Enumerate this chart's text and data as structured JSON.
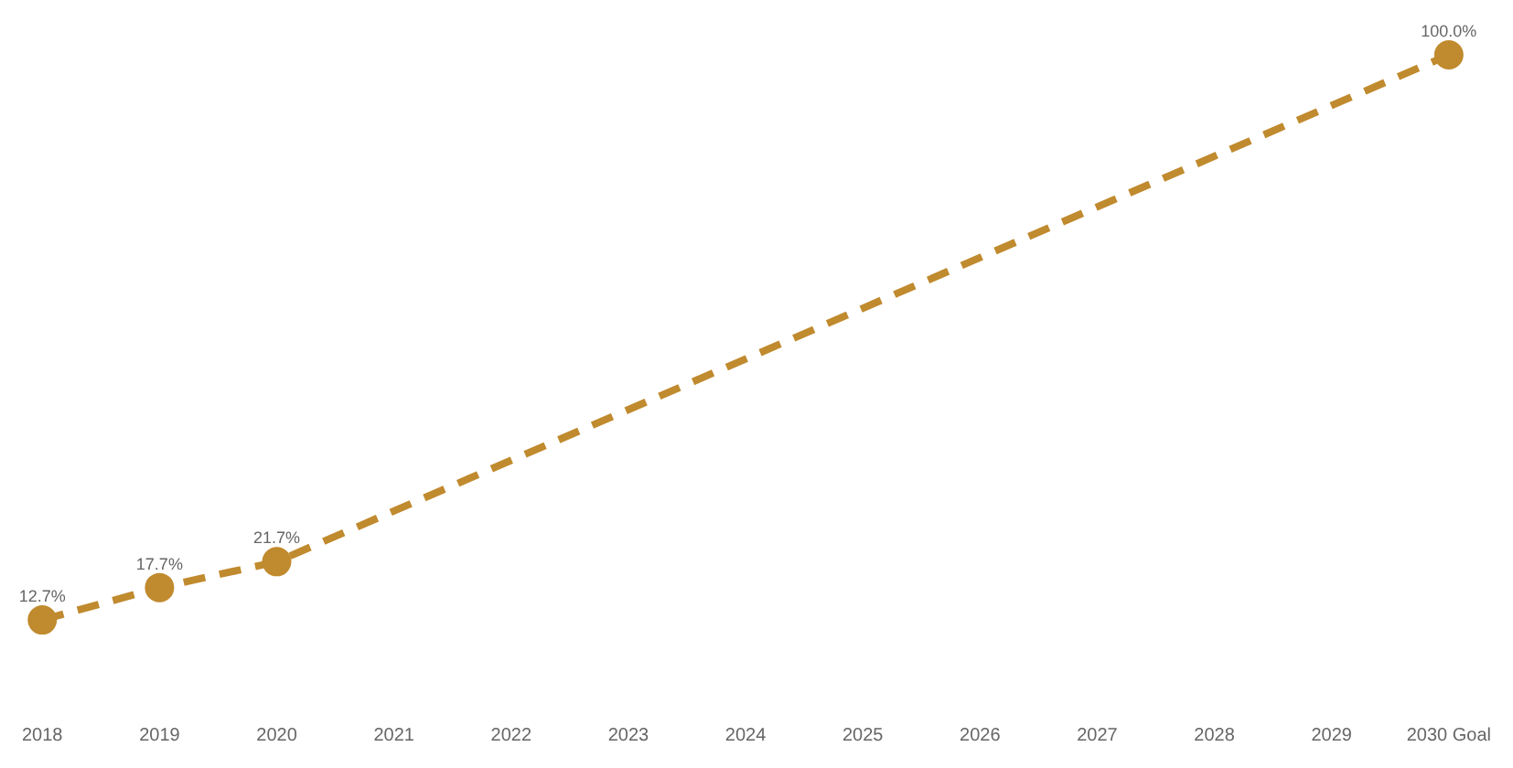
{
  "chart_data": {
    "type": "line",
    "categories": [
      "2018",
      "2019",
      "2020",
      "2021",
      "2022",
      "2023",
      "2024",
      "2025",
      "2026",
      "2027",
      "2028",
      "2029",
      "2030 Goal"
    ],
    "values": [
      12.7,
      17.7,
      21.7,
      null,
      null,
      null,
      null,
      null,
      null,
      null,
      null,
      null,
      100.0
    ],
    "value_labels": [
      "12.7%",
      "17.7%",
      "21.7%",
      null,
      null,
      null,
      null,
      null,
      null,
      null,
      null,
      null,
      "100.0%"
    ],
    "color": "#c08a2e",
    "marker": "circle",
    "line_style": "dashed",
    "grid": false,
    "legend": false,
    "tick_labels": "x"
  }
}
